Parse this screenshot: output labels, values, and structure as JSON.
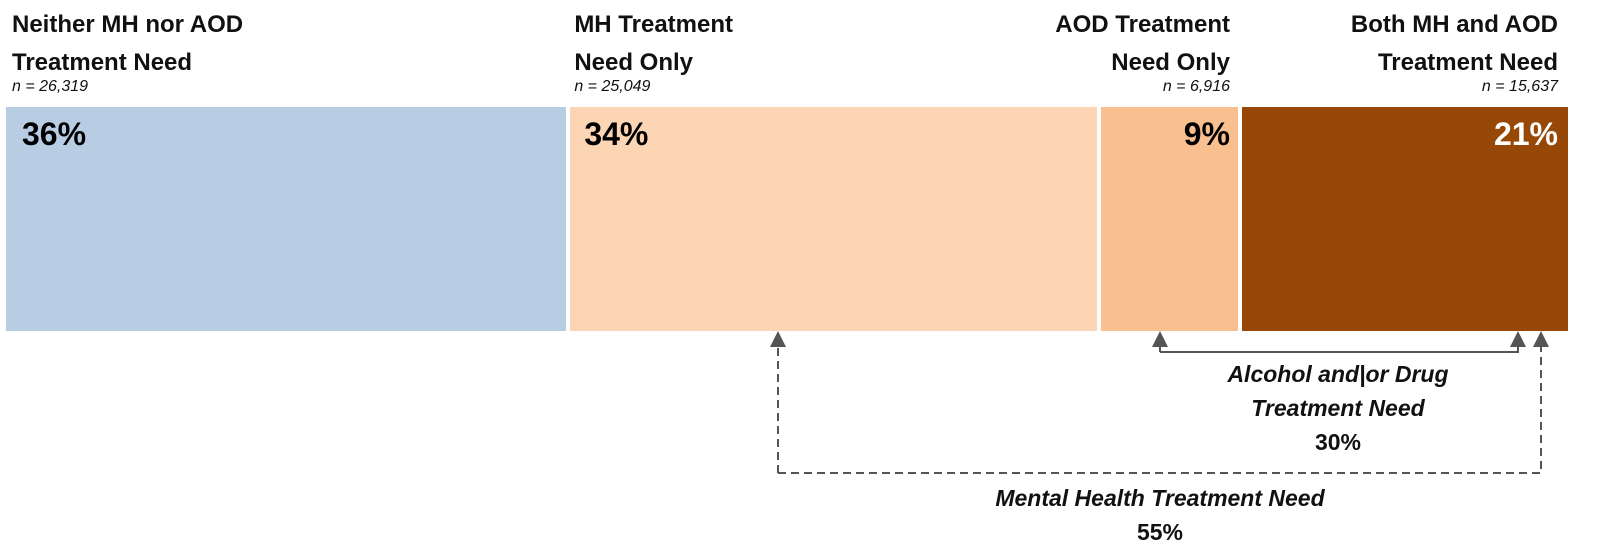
{
  "chart_data": {
    "type": "stacked-bar",
    "series": [
      {
        "name": "Neither MH nor AOD Treatment Need",
        "sample_size": "n = 26,319",
        "values": [
          36
        ],
        "value_labels": [
          "36%"
        ],
        "color": "#b8cce4"
      },
      {
        "name": "MH Treatment Need Only",
        "sample_size": "n = 25,049",
        "values": [
          34
        ],
        "value_labels": [
          "34%"
        ],
        "color": "#fcd5b5"
      },
      {
        "name": "AOD Treatment Need Only",
        "sample_size": "n = 6,916",
        "values": [
          9
        ],
        "value_labels": [
          "9%"
        ],
        "color": "#fabf8f"
      },
      {
        "name": "Both MH and AOD Treatment Need",
        "sample_size": "n = 15,637",
        "values": [
          21
        ],
        "value_labels": [
          "21%"
        ],
        "color": "#974706"
      }
    ],
    "annotations": [
      {
        "text": "Alcohol and|or Drug Treatment Need",
        "value": 30,
        "value_label": "30%"
      },
      {
        "text": "Mental Health Treatment Need",
        "value": 55,
        "value_label": "55%"
      }
    ]
  }
}
